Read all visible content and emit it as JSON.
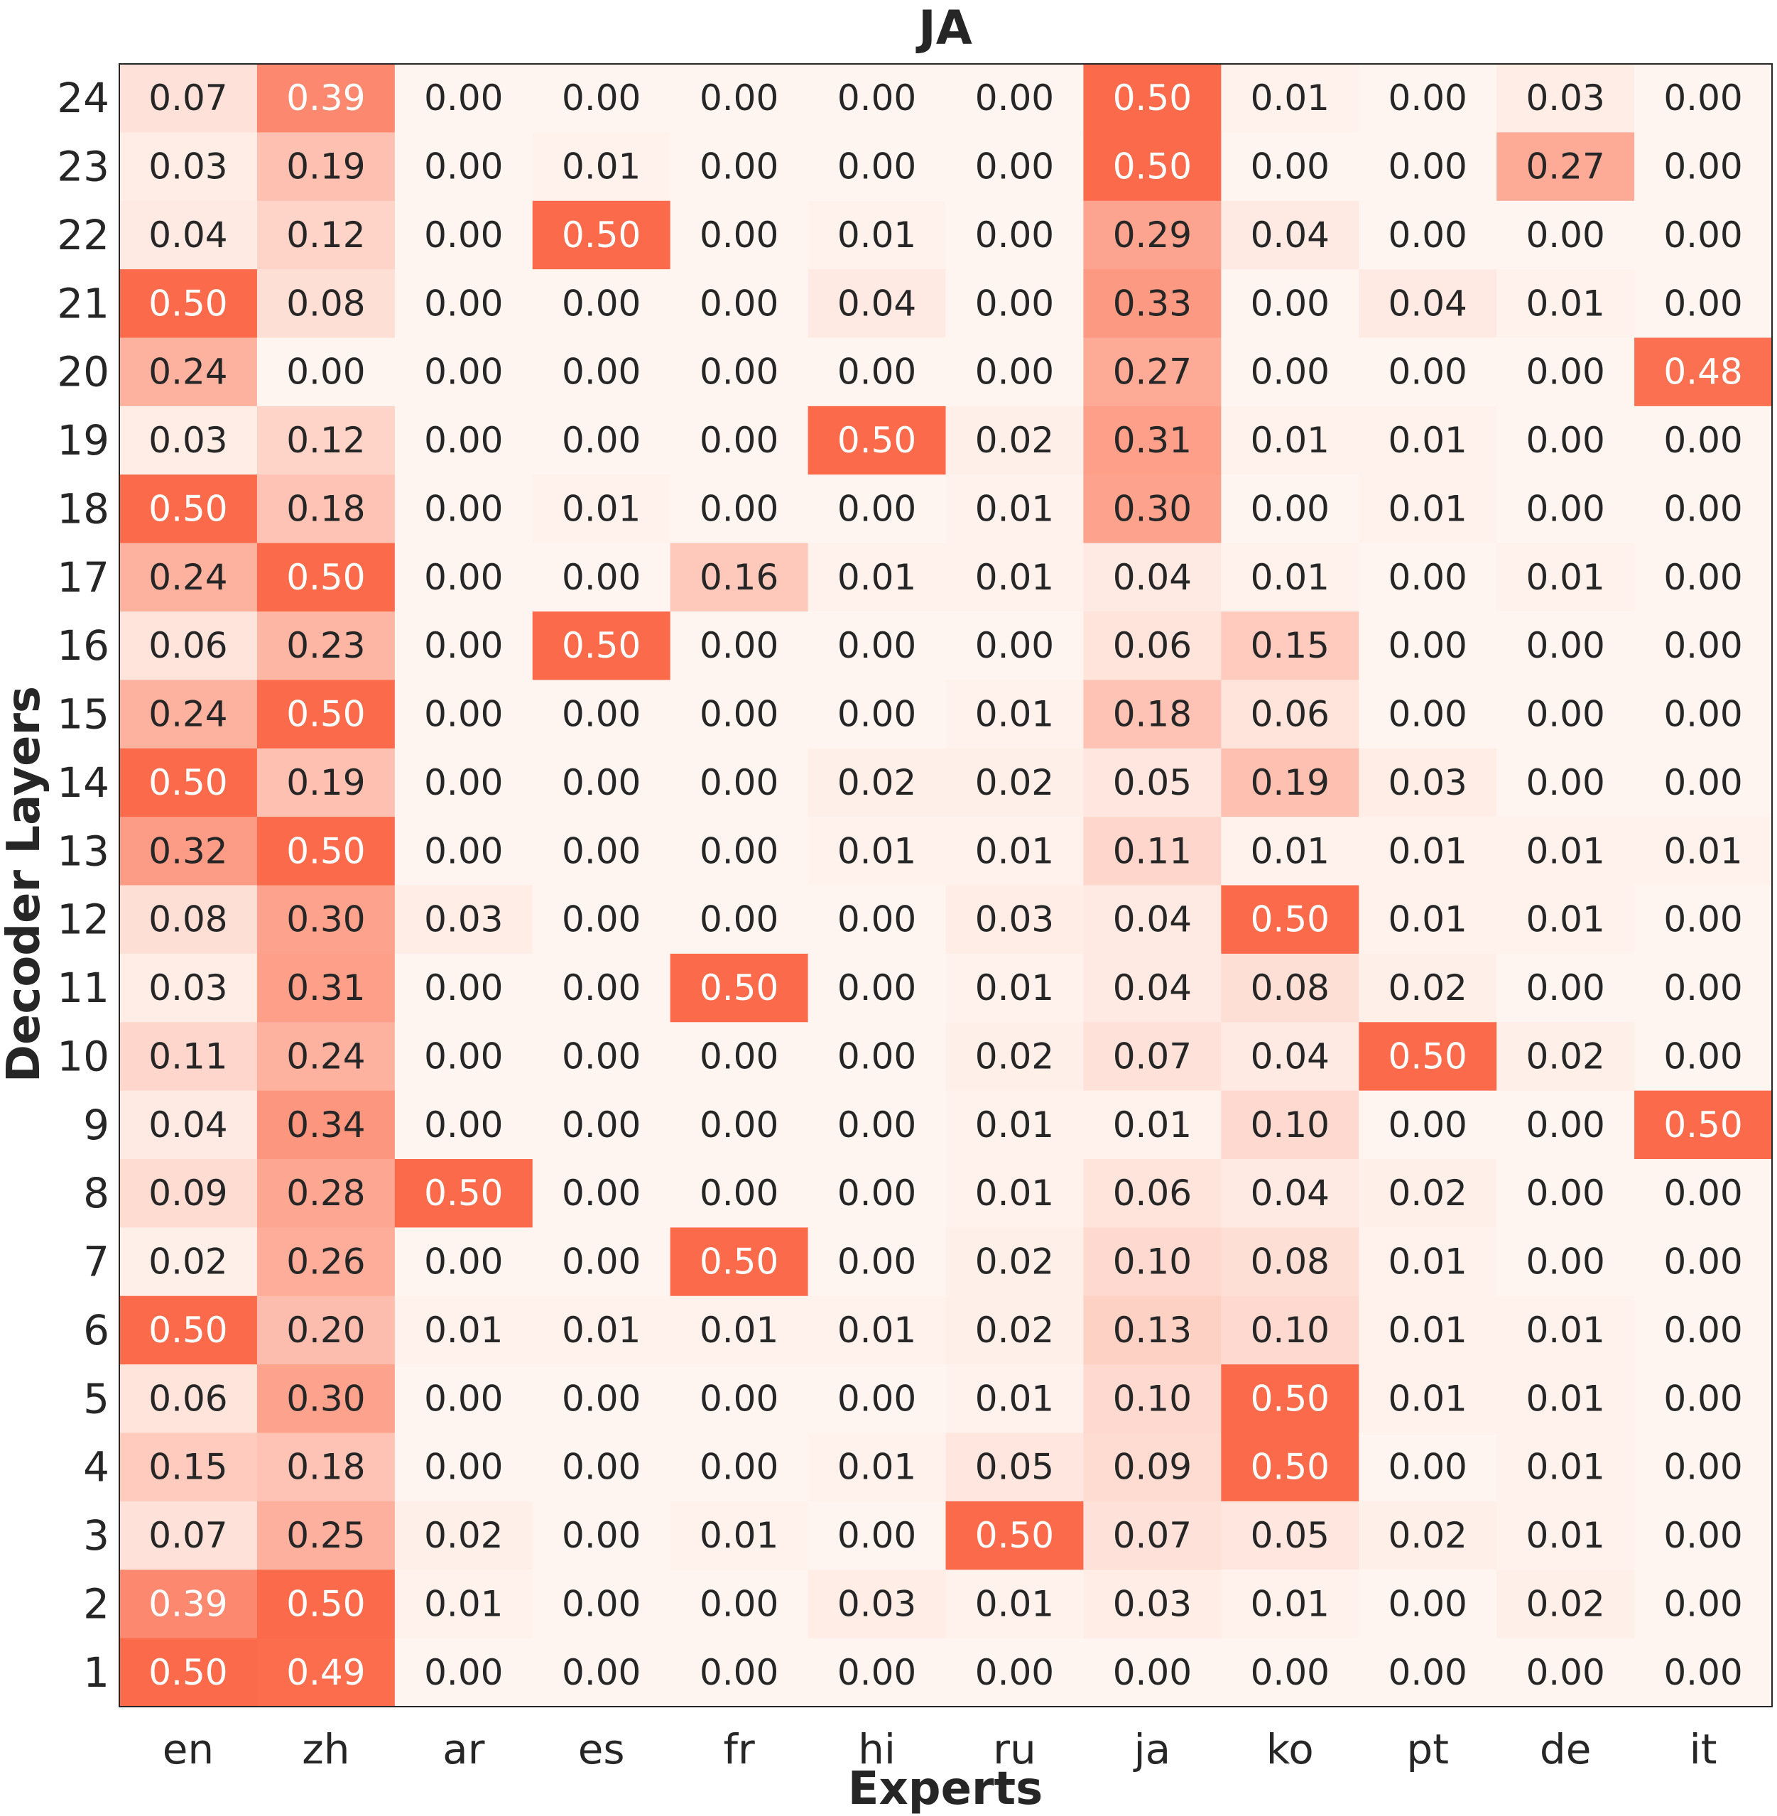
{
  "chart_data": {
    "type": "heatmap",
    "title": "JA",
    "xlabel": "Experts",
    "ylabel": "Decoder Layers",
    "x_categories": [
      "en",
      "zh",
      "ar",
      "es",
      "fr",
      "hi",
      "ru",
      "ja",
      "ko",
      "pt",
      "de",
      "it"
    ],
    "y_categories": [
      24,
      23,
      22,
      21,
      20,
      19,
      18,
      17,
      16,
      15,
      14,
      13,
      12,
      11,
      10,
      9,
      8,
      7,
      6,
      5,
      4,
      3,
      2,
      1
    ],
    "value_range": [
      0,
      0.5
    ],
    "colormap": {
      "low": "#fff5f0",
      "high": "#fb6a4a"
    },
    "values": [
      [
        0.07,
        0.39,
        0.0,
        0.0,
        0.0,
        0.0,
        0.0,
        0.5,
        0.01,
        0.0,
        0.03,
        0.0
      ],
      [
        0.03,
        0.19,
        0.0,
        0.01,
        0.0,
        0.0,
        0.0,
        0.5,
        0.0,
        0.0,
        0.27,
        0.0
      ],
      [
        0.04,
        0.12,
        0.0,
        0.5,
        0.0,
        0.01,
        0.0,
        0.29,
        0.04,
        0.0,
        0.0,
        0.0
      ],
      [
        0.5,
        0.08,
        0.0,
        0.0,
        0.0,
        0.04,
        0.0,
        0.33,
        0.0,
        0.04,
        0.01,
        0.0
      ],
      [
        0.24,
        0.0,
        0.0,
        0.0,
        0.0,
        0.0,
        0.0,
        0.27,
        0.0,
        0.0,
        0.0,
        0.48
      ],
      [
        0.03,
        0.12,
        0.0,
        0.0,
        0.0,
        0.5,
        0.02,
        0.31,
        0.01,
        0.01,
        0.0,
        0.0
      ],
      [
        0.5,
        0.18,
        0.0,
        0.01,
        0.0,
        0.0,
        0.01,
        0.3,
        0.0,
        0.01,
        0.0,
        0.0
      ],
      [
        0.24,
        0.5,
        0.0,
        0.0,
        0.16,
        0.01,
        0.01,
        0.04,
        0.01,
        0.0,
        0.01,
        0.0
      ],
      [
        0.06,
        0.23,
        0.0,
        0.5,
        0.0,
        0.0,
        0.0,
        0.06,
        0.15,
        0.0,
        0.0,
        0.0
      ],
      [
        0.24,
        0.5,
        0.0,
        0.0,
        0.0,
        0.0,
        0.01,
        0.18,
        0.06,
        0.0,
        0.0,
        0.0
      ],
      [
        0.5,
        0.19,
        0.0,
        0.0,
        0.0,
        0.02,
        0.02,
        0.05,
        0.19,
        0.03,
        0.0,
        0.0
      ],
      [
        0.32,
        0.5,
        0.0,
        0.0,
        0.0,
        0.01,
        0.01,
        0.11,
        0.01,
        0.01,
        0.01,
        0.01
      ],
      [
        0.08,
        0.3,
        0.03,
        0.0,
        0.0,
        0.0,
        0.03,
        0.04,
        0.5,
        0.01,
        0.01,
        0.0
      ],
      [
        0.03,
        0.31,
        0.0,
        0.0,
        0.5,
        0.0,
        0.01,
        0.04,
        0.08,
        0.02,
        0.0,
        0.0
      ],
      [
        0.11,
        0.24,
        0.0,
        0.0,
        0.0,
        0.0,
        0.02,
        0.07,
        0.04,
        0.5,
        0.02,
        0.0
      ],
      [
        0.04,
        0.34,
        0.0,
        0.0,
        0.0,
        0.0,
        0.01,
        0.01,
        0.1,
        0.0,
        0.0,
        0.5
      ],
      [
        0.09,
        0.28,
        0.5,
        0.0,
        0.0,
        0.0,
        0.01,
        0.06,
        0.04,
        0.02,
        0.0,
        0.0
      ],
      [
        0.02,
        0.26,
        0.0,
        0.0,
        0.5,
        0.0,
        0.02,
        0.1,
        0.08,
        0.01,
        0.0,
        0.0
      ],
      [
        0.5,
        0.2,
        0.01,
        0.01,
        0.01,
        0.01,
        0.02,
        0.13,
        0.1,
        0.01,
        0.01,
        0.0
      ],
      [
        0.06,
        0.3,
        0.0,
        0.0,
        0.0,
        0.0,
        0.01,
        0.1,
        0.5,
        0.01,
        0.01,
        0.0
      ],
      [
        0.15,
        0.18,
        0.0,
        0.0,
        0.0,
        0.01,
        0.05,
        0.09,
        0.5,
        0.0,
        0.01,
        0.0
      ],
      [
        0.07,
        0.25,
        0.02,
        0.0,
        0.01,
        0.0,
        0.5,
        0.07,
        0.05,
        0.02,
        0.01,
        0.0
      ],
      [
        0.39,
        0.5,
        0.01,
        0.0,
        0.0,
        0.03,
        0.01,
        0.03,
        0.01,
        0.0,
        0.02,
        0.0
      ],
      [
        0.5,
        0.49,
        0.0,
        0.0,
        0.0,
        0.0,
        0.0,
        0.0,
        0.0,
        0.0,
        0.0,
        0.0
      ]
    ]
  }
}
